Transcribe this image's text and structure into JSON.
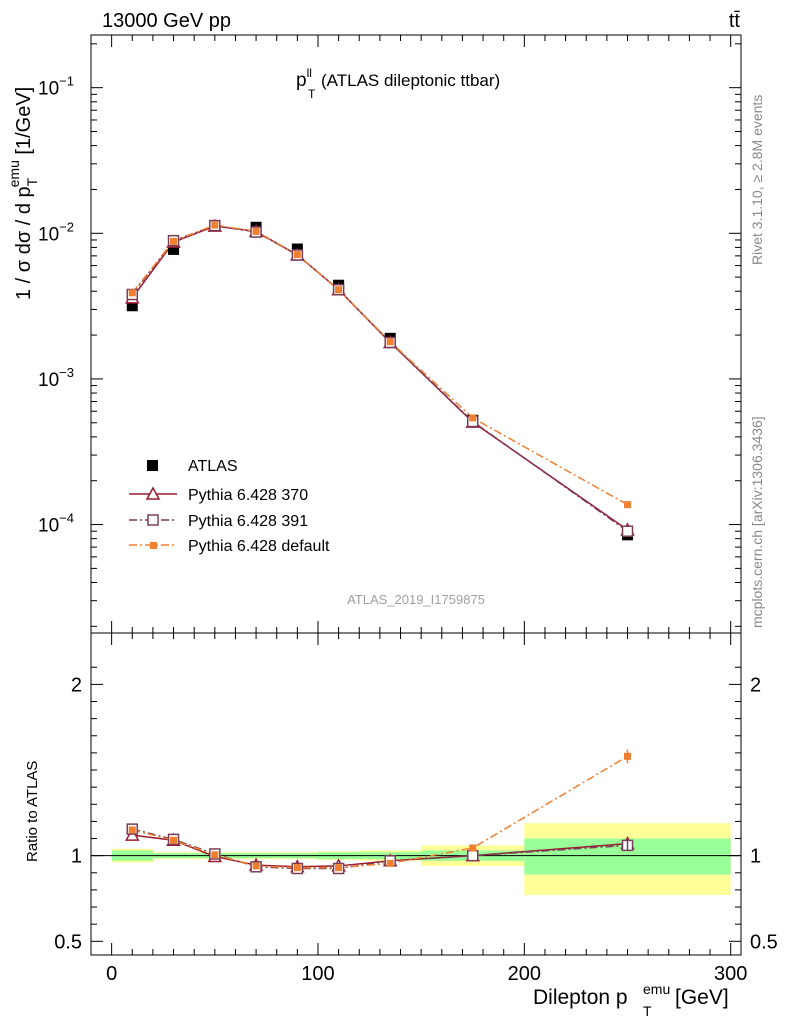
{
  "header": {
    "left": "13000 GeV pp",
    "right": "tt̄"
  },
  "side_text": {
    "rivet": "Rivet 3.1.10, ≥ 2.8M events",
    "mcplots": "mcplots.cern.ch [arXiv:1306.3436]"
  },
  "colors": {
    "data": "#000000",
    "p370": "#9b1b30",
    "p391": "#7a3f58",
    "pdefault": "#f08030",
    "band_inner": "#99ff99",
    "band_outer": "#ffff99"
  },
  "chart_data": [
    {
      "type": "scatter",
      "title_main": "p",
      "title_sup": "ll",
      "title_sub": "T",
      "title_rest": " (ATLAS dileptonic ttbar)",
      "watermark": "ATLAS_2019_I1759875",
      "ylabel": "1 / σ  dσ / d p",
      "ylabel_sup": "emu",
      "ylabel_sub": "T",
      "ylabel_unit": " [1/GeV]",
      "yscale": "log",
      "ylim": [
        1.8e-05,
        0.23
      ],
      "xlim": [
        -10,
        305
      ],
      "ytick_labels": [
        {
          "base": "10",
          "exp": "−4",
          "value": 0.0001
        },
        {
          "base": "10",
          "exp": "−3",
          "value": 0.001
        },
        {
          "base": "10",
          "exp": "−2",
          "value": 0.01
        },
        {
          "base": "10",
          "exp": "−1",
          "value": 0.1
        }
      ],
      "legend": [
        "ATLAS",
        "Pythia 6.428 370",
        "Pythia 6.428 391",
        "Pythia 6.428 default"
      ],
      "x": [
        10,
        30,
        50,
        70,
        90,
        110,
        135,
        175,
        250
      ],
      "series": [
        {
          "name": "ATLAS",
          "values": [
            0.00318,
            0.00775,
            0.0113,
            0.011,
            0.0078,
            0.0044,
            0.0019,
            0.00052,
            8.5e-05
          ]
        },
        {
          "name": "Pythia 6.428 370",
          "values": [
            0.0036,
            0.0087,
            0.0112,
            0.0103,
            0.0071,
            0.0041,
            0.00178,
            0.000505,
            9.2e-05
          ]
        },
        {
          "name": "Pythia 6.428 391",
          "values": [
            0.0038,
            0.0089,
            0.0113,
            0.0102,
            0.0071,
            0.0041,
            0.00178,
            0.00051,
            9e-05
          ]
        },
        {
          "name": "Pythia 6.428 default",
          "values": [
            0.0039,
            0.0088,
            0.0114,
            0.0103,
            0.00715,
            0.0041,
            0.0018,
            0.00054,
            0.000137
          ]
        }
      ]
    },
    {
      "type": "line",
      "ylabel": "Ratio to ATLAS",
      "xlabel": "Dilepton p",
      "xlabel_sup": "emu",
      "xlabel_sub": "T",
      "xlabel_unit": " [GeV]",
      "ylim": [
        0.42,
        2.3
      ],
      "xlim": [
        -10,
        305
      ],
      "xticks": [
        0,
        100,
        200,
        300
      ],
      "xtick_labels": [
        "0",
        "100",
        "200",
        "300"
      ],
      "yticks": [
        0.5,
        1,
        2
      ],
      "ytick_labels": [
        "0.5",
        "1",
        "2"
      ],
      "x": [
        10,
        30,
        50,
        70,
        90,
        110,
        135,
        175,
        250
      ],
      "bins": [
        [
          0,
          20
        ],
        [
          20,
          40
        ],
        [
          40,
          60
        ],
        [
          60,
          80
        ],
        [
          80,
          100
        ],
        [
          100,
          120
        ],
        [
          120,
          150
        ],
        [
          150,
          200
        ],
        [
          200,
          300
        ]
      ],
      "band_inner": [
        [
          0.97,
          1.03
        ],
        [
          0.985,
          1.015
        ],
        [
          0.985,
          1.015
        ],
        [
          0.985,
          1.015
        ],
        [
          0.985,
          1.015
        ],
        [
          0.98,
          1.02
        ],
        [
          0.98,
          1.02
        ],
        [
          0.97,
          1.03
        ],
        [
          0.89,
          1.1
        ]
      ],
      "band_outer": [
        [
          0.96,
          1.04
        ],
        [
          0.98,
          1.02
        ],
        [
          0.98,
          1.02
        ],
        [
          0.98,
          1.02
        ],
        [
          0.98,
          1.02
        ],
        [
          0.975,
          1.025
        ],
        [
          0.97,
          1.03
        ],
        [
          0.94,
          1.06
        ],
        [
          0.77,
          1.19
        ]
      ],
      "series": [
        {
          "name": "Pythia 6.428 370",
          "values": [
            1.12,
            1.09,
            0.995,
            0.945,
            0.935,
            0.94,
            0.97,
            1.0,
            1.07
          ]
        },
        {
          "name": "Pythia 6.428 391",
          "values": [
            1.155,
            1.095,
            1.01,
            0.935,
            0.925,
            0.925,
            0.97,
            1.0,
            1.06
          ]
        },
        {
          "name": "Pythia 6.428 default",
          "values": [
            1.15,
            1.09,
            1.005,
            0.94,
            0.93,
            0.93,
            0.955,
            1.045,
            1.58
          ]
        }
      ]
    }
  ]
}
